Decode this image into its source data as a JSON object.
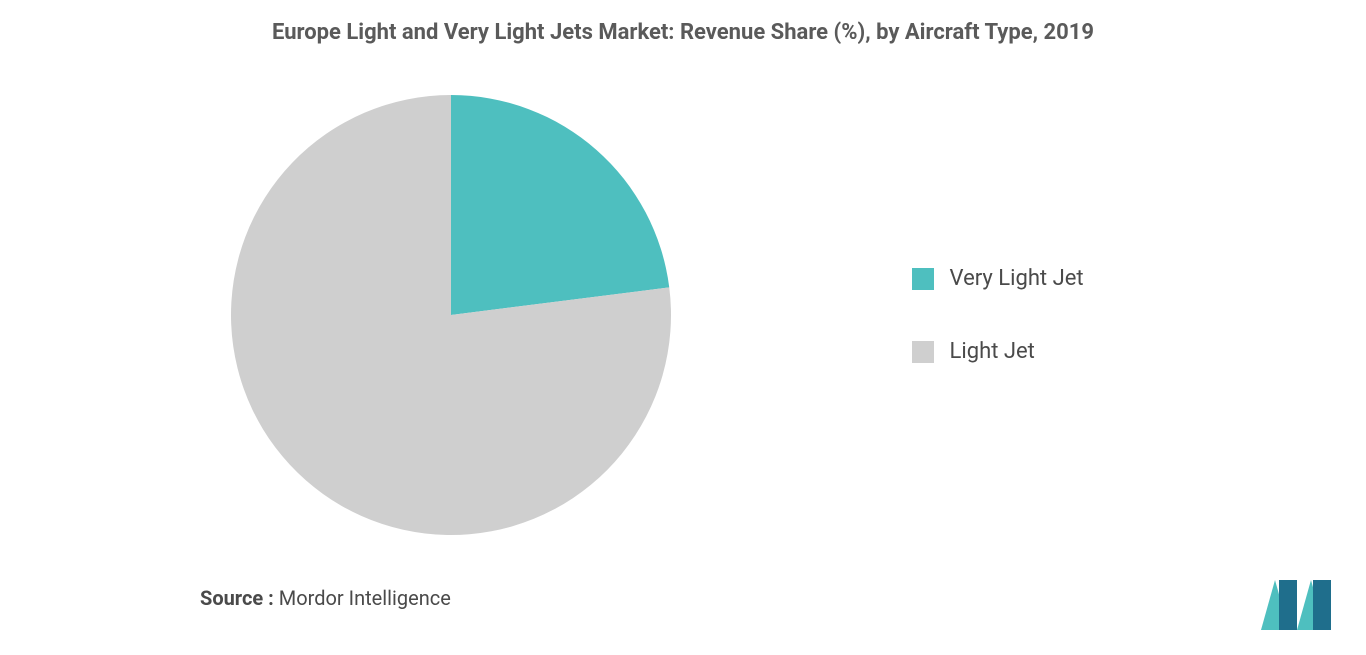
{
  "title": "Europe Light and Very Light Jets Market: Revenue Share (%), by Aircraft Type, 2019",
  "title_fontsize": 22,
  "title_color": "#5a5a5a",
  "chart": {
    "type": "pie",
    "background_color": "#ffffff",
    "radius": 220,
    "slices": [
      {
        "label": "Very Light Jet",
        "value": 23,
        "color": "#4ebfbf"
      },
      {
        "label": "Light Jet",
        "value": 77,
        "color": "#cfcfcf"
      }
    ],
    "legend_fontsize": 22,
    "legend_color": "#4a4a4a"
  },
  "source": {
    "label": "Source :",
    "value": "Mordor Intelligence",
    "fontsize": 20,
    "color": "#4a4a4a"
  },
  "logo": {
    "bar_color": "#1f6e8c",
    "diag_color": "#4ebfbf",
    "width": 70,
    "height": 50
  }
}
